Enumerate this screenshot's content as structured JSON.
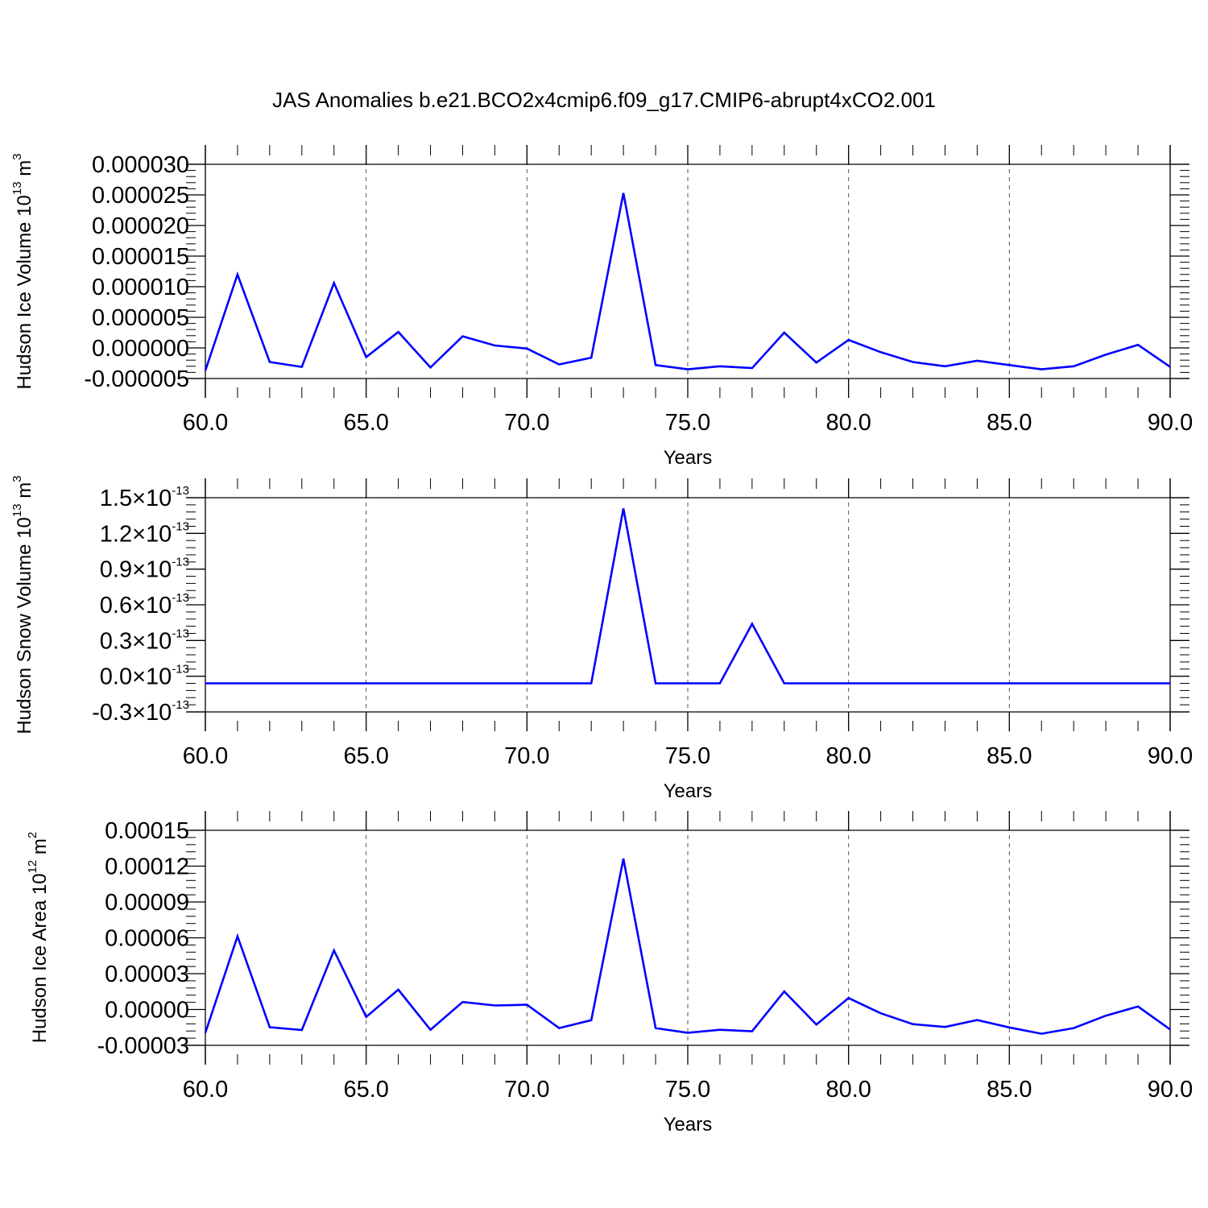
{
  "title": "JAS Anomalies b.e21.BCO2x4cmip6.f09_g17.CMIP6-abrupt4xCO2.001",
  "line_color": "#0000ff",
  "chart_data": [
    {
      "type": "line",
      "ylabel": "Hudson Ice Volume 10",
      "ylabel_exp": "13",
      "ylabel_unit": "m",
      "ylabel_unit_exp": "3",
      "xlabel": "Years",
      "xlim": [
        60,
        90
      ],
      "ylim": [
        -5e-06,
        3e-05
      ],
      "grid": "vertical dashed",
      "xticks": [
        {
          "v": 60,
          "label": "60.0"
        },
        {
          "v": 65,
          "label": "65.0"
        },
        {
          "v": 70,
          "label": "70.0"
        },
        {
          "v": 75,
          "label": "75.0"
        },
        {
          "v": 80,
          "label": "80.0"
        },
        {
          "v": 85,
          "label": "85.0"
        },
        {
          "v": 90,
          "label": "90.0"
        }
      ],
      "yticks": [
        {
          "v": 3e-05,
          "label": "0.000030"
        },
        {
          "v": 2.5e-05,
          "label": "0.000025"
        },
        {
          "v": 2e-05,
          "label": "0.000020"
        },
        {
          "v": 1.5e-05,
          "label": "0.000015"
        },
        {
          "v": 1e-05,
          "label": "0.000010"
        },
        {
          "v": 5e-06,
          "label": "0.000005"
        },
        {
          "v": 0,
          "label": "0.000000"
        },
        {
          "v": -5e-06,
          "label": "-0.000005"
        }
      ],
      "x": [
        60,
        61,
        62,
        63,
        64,
        65,
        66,
        67,
        68,
        69,
        70,
        71,
        72,
        73,
        74,
        75,
        76,
        77,
        78,
        79,
        80,
        81,
        82,
        83,
        84,
        85,
        86,
        87,
        88,
        89,
        90
      ],
      "y": [
        -3.7e-06,
        1.2e-05,
        -2.3e-06,
        -3.1e-06,
        1.06e-05,
        -1.5e-06,
        2.6e-06,
        -3.2e-06,
        1.9e-06,
        4e-07,
        -1e-07,
        -2.7e-06,
        -1.6e-06,
        2.53e-05,
        -2.8e-06,
        -3.5e-06,
        -3e-06,
        -3.3e-06,
        2.5e-06,
        -2.4e-06,
        1.3e-06,
        -7e-07,
        -2.3e-06,
        -3e-06,
        -2.1e-06,
        -2.8e-06,
        -3.5e-06,
        -3e-06,
        -1.1e-06,
        5e-07,
        -3.1e-06
      ]
    },
    {
      "type": "line",
      "ylabel": "Hudson Snow Volume 10",
      "ylabel_exp": "13",
      "ylabel_unit": "m",
      "ylabel_unit_exp": "3",
      "xlabel": "Years",
      "xlim": [
        60,
        90
      ],
      "ylim": [
        -3e-14,
        1.5e-13
      ],
      "grid": "vertical dashed",
      "xticks": [
        {
          "v": 60,
          "label": "60.0"
        },
        {
          "v": 65,
          "label": "65.0"
        },
        {
          "v": 70,
          "label": "70.0"
        },
        {
          "v": 75,
          "label": "75.0"
        },
        {
          "v": 80,
          "label": "80.0"
        },
        {
          "v": 85,
          "label": "85.0"
        },
        {
          "v": 90,
          "label": "90.0"
        }
      ],
      "yticks": [
        {
          "v": 1.5e-13,
          "label": "1.5",
          "times": "×",
          "base": "10",
          "exp": "-13"
        },
        {
          "v": 1.2e-13,
          "label": "1.2",
          "times": "×",
          "base": "10",
          "exp": "-13"
        },
        {
          "v": 9e-14,
          "label": "0.9",
          "times": "×",
          "base": "10",
          "exp": "-13"
        },
        {
          "v": 6e-14,
          "label": "0.6",
          "times": "×",
          "base": "10",
          "exp": "-13"
        },
        {
          "v": 3e-14,
          "label": "0.3",
          "times": "×",
          "base": "10",
          "exp": "-13"
        },
        {
          "v": 0,
          "label": "0.0",
          "times": "×",
          "base": "10",
          "exp": "-13"
        },
        {
          "v": -3e-14,
          "label": "-0.3",
          "times": "×",
          "base": "10",
          "exp": "-13"
        }
      ],
      "x": [
        60,
        61,
        62,
        63,
        64,
        65,
        66,
        67,
        68,
        69,
        70,
        71,
        72,
        73,
        74,
        75,
        76,
        77,
        78,
        79,
        80,
        81,
        82,
        83,
        84,
        85,
        86,
        87,
        88,
        89,
        90
      ],
      "y": [
        -6e-15,
        -6e-15,
        -6e-15,
        -6e-15,
        -6e-15,
        -6e-15,
        -6e-15,
        -6e-15,
        -6e-15,
        -6e-15,
        -6e-15,
        -6e-15,
        -6e-15,
        1.41e-13,
        -6e-15,
        -6e-15,
        -6e-15,
        4.4e-14,
        -6e-15,
        -6e-15,
        -6e-15,
        -6e-15,
        -6e-15,
        -6e-15,
        -6e-15,
        -6e-15,
        -6e-15,
        -6e-15,
        -6e-15,
        -6e-15,
        -6e-15
      ]
    },
    {
      "type": "line",
      "ylabel": "Hudson Ice Area 10",
      "ylabel_exp": "12",
      "ylabel_unit": "m",
      "ylabel_unit_exp": "2",
      "xlabel": "Years",
      "xlim": [
        60,
        90
      ],
      "ylim": [
        -3e-05,
        0.00015
      ],
      "grid": "vertical dashed",
      "xticks": [
        {
          "v": 60,
          "label": "60.0"
        },
        {
          "v": 65,
          "label": "65.0"
        },
        {
          "v": 70,
          "label": "70.0"
        },
        {
          "v": 75,
          "label": "75.0"
        },
        {
          "v": 80,
          "label": "80.0"
        },
        {
          "v": 85,
          "label": "85.0"
        },
        {
          "v": 90,
          "label": "90.0"
        }
      ],
      "yticks": [
        {
          "v": 0.00015,
          "label": "0.00015"
        },
        {
          "v": 0.00012,
          "label": "0.00012"
        },
        {
          "v": 9e-05,
          "label": "0.00009"
        },
        {
          "v": 6e-05,
          "label": "0.00006"
        },
        {
          "v": 3e-05,
          "label": "0.00003"
        },
        {
          "v": 0,
          "label": "0.00000"
        },
        {
          "v": -3e-05,
          "label": "-0.00003"
        }
      ],
      "x": [
        60,
        61,
        62,
        63,
        64,
        65,
        66,
        67,
        68,
        69,
        70,
        71,
        72,
        73,
        74,
        75,
        76,
        77,
        78,
        79,
        80,
        81,
        82,
        83,
        84,
        85,
        86,
        87,
        88,
        89,
        90
      ],
      "y": [
        -1.95e-05,
        6.13e-05,
        -1.48e-05,
        -1.72e-05,
        4.94e-05,
        -6.2e-06,
        1.66e-05,
        -1.7e-05,
        6.3e-06,
        3.4e-06,
        4e-06,
        -1.56e-05,
        -9e-06,
        0.0001262,
        -1.56e-05,
        -1.95e-05,
        -1.7e-05,
        -1.82e-05,
        1.51e-05,
        -1.26e-05,
        9.6e-06,
        -3.2e-06,
        -1.23e-05,
        -1.46e-05,
        -8.8e-06,
        -1.5e-05,
        -2.03e-05,
        -1.56e-05,
        -5.2e-06,
        2.5e-06,
        -1.67e-05
      ]
    }
  ]
}
